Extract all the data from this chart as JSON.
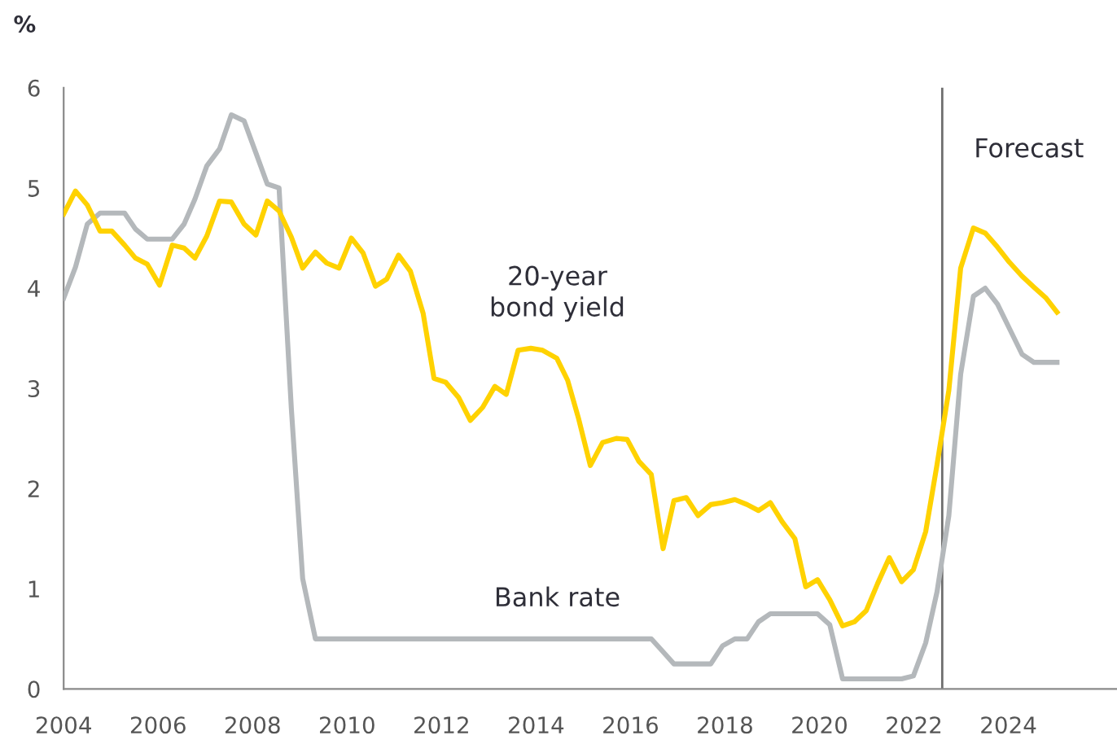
{
  "chart_data": {
    "type": "line",
    "ylabel": "%",
    "x": [
      2004.0,
      2004.25,
      2004.5,
      2004.77,
      2005.02,
      2005.29,
      2005.52,
      2005.77,
      2006.03,
      2006.3,
      2006.55,
      2006.78,
      2007.03,
      2007.3,
      2007.55,
      2007.82,
      2008.07,
      2008.31,
      2008.56,
      2008.82,
      2009.06,
      2009.33,
      2009.57,
      2009.83,
      2010.09,
      2010.34,
      2010.6,
      2010.84,
      2011.09,
      2011.34,
      2011.61,
      2011.84,
      2012.09,
      2012.36,
      2012.61,
      2012.87,
      2013.13,
      2013.37,
      2013.62,
      2013.89,
      2014.14,
      2014.44,
      2014.67,
      2014.9,
      2015.15,
      2015.41,
      2015.7,
      2015.93,
      2016.18,
      2016.44,
      2016.69,
      2016.92,
      2017.18,
      2017.43,
      2017.7,
      2017.95,
      2018.21,
      2018.47,
      2018.71,
      2018.96,
      2019.21,
      2019.48,
      2019.71,
      2019.96,
      2020.22,
      2020.49,
      2020.74,
      2020.99,
      2021.23,
      2021.48,
      2021.74,
      2021.99,
      2022.25,
      2022.49,
      2022.74,
      2022.99,
      2023.26,
      2023.51,
      2023.77,
      2024.02,
      2024.29,
      2024.54,
      2024.8,
      2025.03
    ],
    "series": [
      {
        "name": "20-year\nbond yield",
        "color": "#ffd200",
        "values": [
          4.74,
          4.97,
          4.83,
          4.57,
          4.57,
          4.43,
          4.3,
          4.24,
          4.03,
          4.43,
          4.4,
          4.3,
          4.52,
          4.87,
          4.86,
          4.64,
          4.53,
          4.87,
          4.77,
          4.51,
          4.2,
          4.36,
          4.25,
          4.2,
          4.5,
          4.35,
          4.02,
          4.09,
          4.33,
          4.17,
          3.75,
          3.1,
          3.06,
          2.91,
          2.68,
          2.81,
          3.02,
          2.94,
          3.38,
          3.4,
          3.38,
          3.3,
          3.08,
          2.7,
          2.23,
          2.46,
          2.5,
          2.49,
          2.27,
          2.14,
          1.4,
          1.88,
          1.91,
          1.73,
          1.84,
          1.86,
          1.89,
          1.84,
          1.78,
          1.86,
          1.67,
          1.5,
          1.02,
          1.09,
          0.89,
          0.63,
          0.67,
          0.78,
          1.05,
          1.31,
          1.07,
          1.19,
          1.57,
          2.24,
          2.98,
          4.2,
          4.6,
          4.55,
          4.41,
          4.26,
          4.12,
          4.01,
          3.9,
          3.76
        ]
      },
      {
        "name": "Bank rate",
        "color": "#b4b8bb",
        "x": [
          2004.0,
          2004.25,
          2004.5,
          2004.77,
          2005.29,
          2005.52,
          2005.77,
          2006.3,
          2006.55,
          2006.78,
          2007.03,
          2007.3,
          2007.55,
          2007.82,
          2008.07,
          2008.31,
          2008.56,
          2008.82,
          2009.06,
          2009.33,
          2016.44,
          2016.69,
          2016.92,
          2017.7,
          2017.95,
          2018.21,
          2018.47,
          2018.71,
          2018.96,
          2019.96,
          2020.22,
          2020.49,
          2021.74,
          2021.99,
          2022.25,
          2022.49,
          2022.74,
          2022.99,
          2023.26,
          2023.51,
          2023.77,
          2024.02,
          2024.29,
          2024.54,
          2025.03
        ],
        "values": [
          3.9,
          4.21,
          4.64,
          4.75,
          4.75,
          4.59,
          4.49,
          4.49,
          4.64,
          4.89,
          5.22,
          5.39,
          5.73,
          5.67,
          5.35,
          5.04,
          5.0,
          2.8,
          1.1,
          0.5,
          0.5,
          0.37,
          0.25,
          0.25,
          0.43,
          0.5,
          0.5,
          0.67,
          0.75,
          0.75,
          0.64,
          0.1,
          0.1,
          0.13,
          0.46,
          0.97,
          1.73,
          3.14,
          3.92,
          4.0,
          3.84,
          3.6,
          3.34,
          3.26,
          3.26
        ]
      }
    ],
    "xlim": [
      2004,
      2026.3
    ],
    "xticks": [
      2004,
      2006,
      2008,
      2010,
      2012,
      2014,
      2016,
      2018,
      2020,
      2022,
      2024
    ],
    "ylim": [
      0,
      6
    ],
    "yticks": [
      0,
      1,
      2,
      3,
      4,
      5,
      6
    ],
    "ref_lines": [
      {
        "axis": "x",
        "value": 2022.6,
        "label": "Forecast",
        "color": "#6e6e6e"
      }
    ],
    "grid": false,
    "marker": "none",
    "line_style": "solid"
  }
}
